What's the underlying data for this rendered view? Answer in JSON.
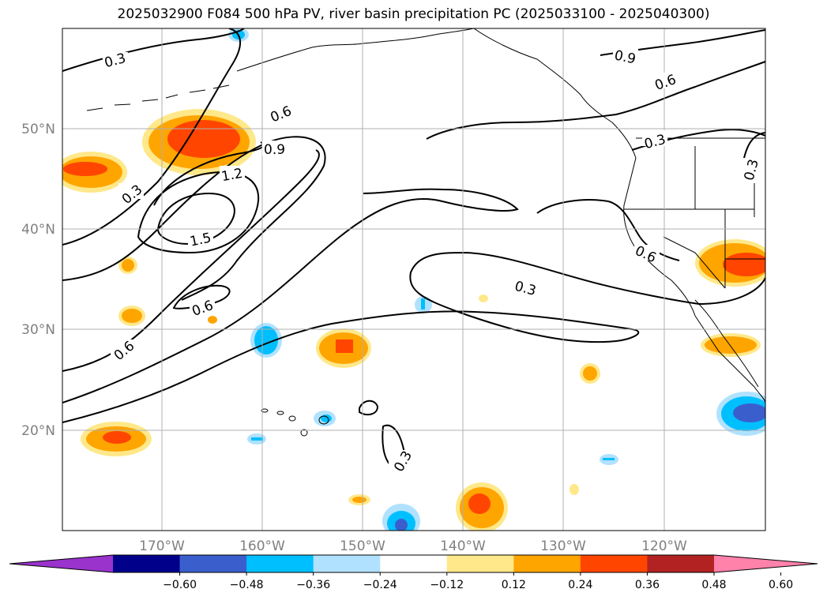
{
  "title": "2025032900 F084 500 hPa PV, river basin precipitation PC (2025033100 - 2025040300)",
  "map": {
    "projection": "PlateCarree",
    "lon_range": [
      -180,
      -110
    ],
    "lat_range": [
      10,
      60
    ],
    "lat_labels": [
      "50°N",
      "40°N",
      "30°N",
      "20°N"
    ],
    "lon_labels": [
      "170°W",
      "160°W",
      "150°W",
      "140°W",
      "130°W",
      "120°W"
    ],
    "gridlines": true
  },
  "contour_labels": [
    "0.3",
    "0.6",
    "0.9",
    "1.2",
    "1.5",
    "0.6",
    "0.9",
    "0.3",
    "0.6",
    "0.6",
    "0.3",
    "0.3",
    "0.6",
    "0.3",
    "0.3"
  ],
  "colorbar": {
    "ticks": [
      "−0.60",
      "−0.48",
      "−0.36",
      "−0.24",
      "−0.12",
      "0.12",
      "0.24",
      "0.36",
      "0.48",
      "0.60"
    ],
    "colors": [
      "#9933cc",
      "#00008b",
      "#3a5fcd",
      "#00bfff",
      "#b0e2ff",
      "#ffffff",
      "#ffe88a",
      "#ffa500",
      "#ff4500",
      "#b22222",
      "#ff82ab"
    ]
  }
}
